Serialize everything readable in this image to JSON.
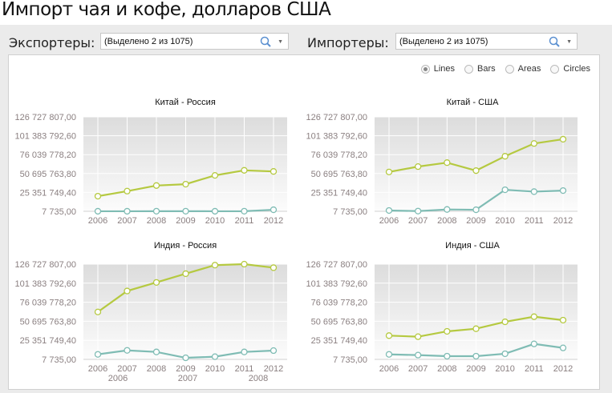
{
  "page": {
    "title": "Импорт чая и кофе, долларов США"
  },
  "filters": {
    "exporters_label": "Экспортеры:",
    "exporters_value": "(Выделено 2 из 1075)",
    "importers_label": "Импортеры:",
    "importers_value": "(Выделено 2 из 1075)"
  },
  "chart_type": {
    "options": [
      {
        "label": "Lines",
        "selected": true
      },
      {
        "label": "Bars",
        "selected": false
      },
      {
        "label": "Areas",
        "selected": false
      },
      {
        "label": "Circles",
        "selected": false
      }
    ]
  },
  "colors": {
    "series_a": "#b5c940",
    "series_b": "#7fbcb4"
  },
  "overlay_labels": [
    "2006",
    "2007",
    "2008"
  ],
  "chart_data": [
    {
      "type": "line",
      "title": "Китай - Россия",
      "categories": [
        "2006",
        "2007",
        "2008",
        "2009",
        "2010",
        "2011",
        "2012"
      ],
      "yticks": [
        "7 735,00",
        "25 351 749,40",
        "50 695 763,80",
        "76 039 778,20",
        "101 383 792,60",
        "126 727 807,00"
      ],
      "ylim": [
        7735,
        126727807
      ],
      "grid": true,
      "series": [
        {
          "values": [
            20300000,
            27100000,
            34600000,
            36400000,
            48200000,
            55000000,
            53500000
          ]
        },
        {
          "values": [
            100000,
            100000,
            150000,
            150000,
            100000,
            150000,
            2100000
          ]
        }
      ]
    },
    {
      "type": "line",
      "title": "Китай - США",
      "categories": [
        "2006",
        "2007",
        "2008",
        "2009",
        "2010",
        "2011",
        "2012"
      ],
      "yticks": [
        "7 735,00",
        "25 351 749,40",
        "50 695 763,80",
        "76 039 778,20",
        "101 383 792,60",
        "126 727 807,00"
      ],
      "ylim": [
        7735,
        126727807
      ],
      "grid": true,
      "series": [
        {
          "values": [
            52800000,
            60000000,
            65300000,
            54600000,
            73900000,
            91000000,
            96700000
          ]
        },
        {
          "values": [
            1100000,
            300000,
            2500000,
            2100000,
            28900000,
            26400000,
            27800000
          ]
        }
      ]
    },
    {
      "type": "line",
      "title": "Индия - Россия",
      "categories": [
        "2006",
        "2007",
        "2008",
        "2009",
        "2010",
        "2011",
        "2012"
      ],
      "yticks": [
        "7 735,00",
        "25 351 749,40",
        "50 695 763,80",
        "76 039 778,20",
        "101 383 792,60",
        "126 727 807,00"
      ],
      "ylim": [
        7735,
        126727807
      ],
      "grid": true,
      "series": [
        {
          "values": [
            63100000,
            91000000,
            102400000,
            114000000,
            125400000,
            126700000,
            122000000
          ]
        },
        {
          "values": [
            6700000,
            12000000,
            9900000,
            2100000,
            3600000,
            9900000,
            11700000
          ]
        }
      ]
    },
    {
      "type": "line",
      "title": "Индия - США",
      "categories": [
        "2006",
        "2007",
        "2008",
        "2009",
        "2010",
        "2011",
        "2012"
      ],
      "yticks": [
        "7 735,00",
        "25 351 749,40",
        "50 695 763,80",
        "76 039 778,20",
        "101 383 792,60",
        "126 727 807,00"
      ],
      "ylim": [
        7735,
        126727807
      ],
      "grid": true,
      "series": [
        {
          "values": [
            31600000,
            30200000,
            37300000,
            40800000,
            50000000,
            56800000,
            52200000
          ]
        },
        {
          "values": [
            6700000,
            5700000,
            4300000,
            4300000,
            7500000,
            20600000,
            15300000
          ]
        }
      ]
    }
  ]
}
